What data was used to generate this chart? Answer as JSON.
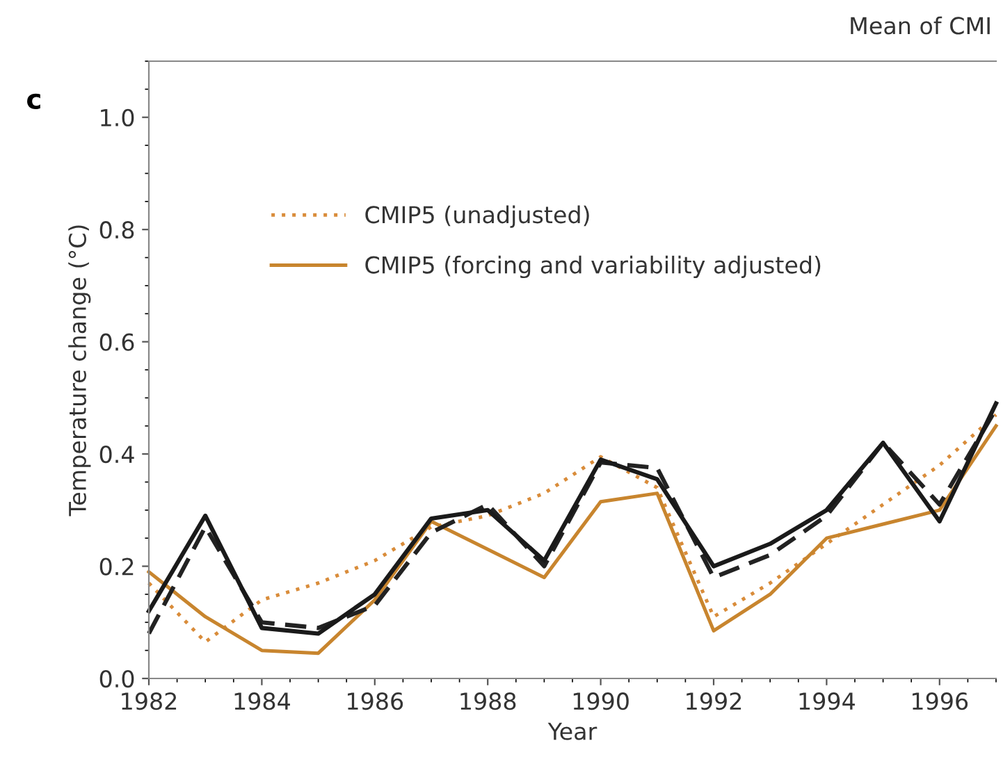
{
  "chart_data": {
    "type": "line",
    "title": "Mean of CMI",
    "xlabel": "Year",
    "ylabel": "Temperature change (°C)",
    "annotations": [
      "c"
    ],
    "x": [
      1982,
      1983,
      1984,
      1985,
      1986,
      1987,
      1988,
      1989,
      1990,
      1991,
      1992,
      1993,
      1994,
      1995,
      1996,
      1997
    ],
    "series": [
      {
        "name": "CMIP5 (unadjusted)",
        "color": "#d98c3a",
        "line_style": "dotted",
        "values": [
          0.17,
          0.065,
          0.14,
          0.17,
          0.21,
          0.27,
          0.29,
          0.33,
          0.395,
          0.34,
          0.11,
          0.17,
          0.24,
          0.31,
          0.38,
          0.47
        ]
      },
      {
        "name": "CMIP5 (forcing and variability adjusted)",
        "color": "#c8852e",
        "line_style": "solid",
        "values": [
          0.19,
          0.11,
          0.05,
          0.045,
          0.14,
          0.28,
          0.23,
          0.18,
          0.315,
          0.33,
          0.085,
          0.15,
          0.25,
          0.275,
          0.3,
          0.45
        ]
      },
      {
        "color": "#222222",
        "line_style": "dashed",
        "values": [
          0.08,
          0.27,
          0.1,
          0.09,
          0.13,
          0.26,
          0.31,
          0.2,
          0.385,
          0.375,
          0.18,
          0.22,
          0.29,
          0.42,
          0.31,
          0.48
        ]
      },
      {
        "color": "#1a1a1a",
        "line_style": "solid",
        "values": [
          0.12,
          0.29,
          0.09,
          0.08,
          0.15,
          0.285,
          0.3,
          0.21,
          0.39,
          0.355,
          0.2,
          0.24,
          0.3,
          0.42,
          0.28,
          0.49
        ]
      }
    ],
    "xlim": [
      1982,
      1997
    ],
    "xticks": [
      1982,
      1984,
      1986,
      1988,
      1990,
      1992,
      1994,
      1996
    ],
    "ylim": [
      0,
      1.1
    ],
    "yticks": [
      {
        "value": 0,
        "label": "0.0"
      },
      0.2,
      0.4,
      0.6,
      0.8,
      {
        "value": 1,
        "label": "1.0"
      }
    ],
    "grid": false,
    "legend": "top left",
    "marker": "none"
  }
}
